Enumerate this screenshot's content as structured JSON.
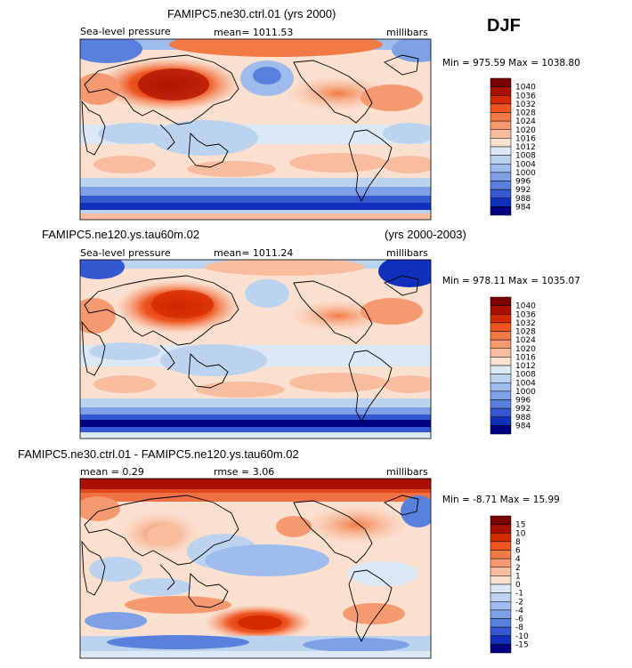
{
  "season": "DJF",
  "chart_data": [
    {
      "type": "heatmap",
      "title": "FAMIPC5.ne30.ctrl.01 (yrs 2000)",
      "variable": "Sea-level pressure",
      "mean_text": "mean= 1011.53",
      "units": "millibars",
      "minmax_text": "Min = 975.59 Max = 1038.80",
      "min": 975.59,
      "max": 1038.8,
      "colorbar_levels": [
        "1040",
        "1036",
        "1032",
        "1028",
        "1024",
        "1020",
        "1016",
        "1012",
        "1008",
        "1004",
        "1000",
        "996",
        "992",
        "988",
        "984"
      ]
    },
    {
      "type": "heatmap",
      "title": "FAMIPC5.ne120.ys.tau60m.02",
      "title_right": "(yrs 2000-2003)",
      "variable": "Sea-level pressure",
      "mean_text": "mean= 1011.24",
      "units": "millibars",
      "minmax_text": "Min = 978.11 Max = 1035.07",
      "min": 978.11,
      "max": 1035.07,
      "colorbar_levels": [
        "1040",
        "1036",
        "1032",
        "1028",
        "1024",
        "1020",
        "1016",
        "1012",
        "1008",
        "1004",
        "1000",
        "996",
        "992",
        "988",
        "984"
      ]
    },
    {
      "type": "heatmap",
      "title": "FAMIPC5.ne30.ctrl.01 - FAMIPC5.ne120.ys.tau60m.02",
      "mean_text": "mean =    0.29",
      "rmse_text": "rmse =    3.06",
      "units": "millibars",
      "minmax_text": "Min =  -8.71 Max =  15.99",
      "min": -8.71,
      "max": 15.99,
      "colorbar_levels": [
        "15",
        "10",
        "8",
        "6",
        "4",
        "2",
        "1",
        "0",
        "-1",
        "-2",
        "-4",
        "-6",
        "-8",
        "-10",
        "-15"
      ]
    }
  ],
  "colors": {
    "scale": [
      "#7a0000",
      "#a81000",
      "#d42a00",
      "#ee5520",
      "#f27a45",
      "#f59a70",
      "#f8bd9e",
      "#fbe0d0",
      "#dbe8f6",
      "#bcd3f0",
      "#9ebcec",
      "#7ea0e6",
      "#5a80de",
      "#3458d0",
      "#1030bc",
      "#000080"
    ]
  }
}
